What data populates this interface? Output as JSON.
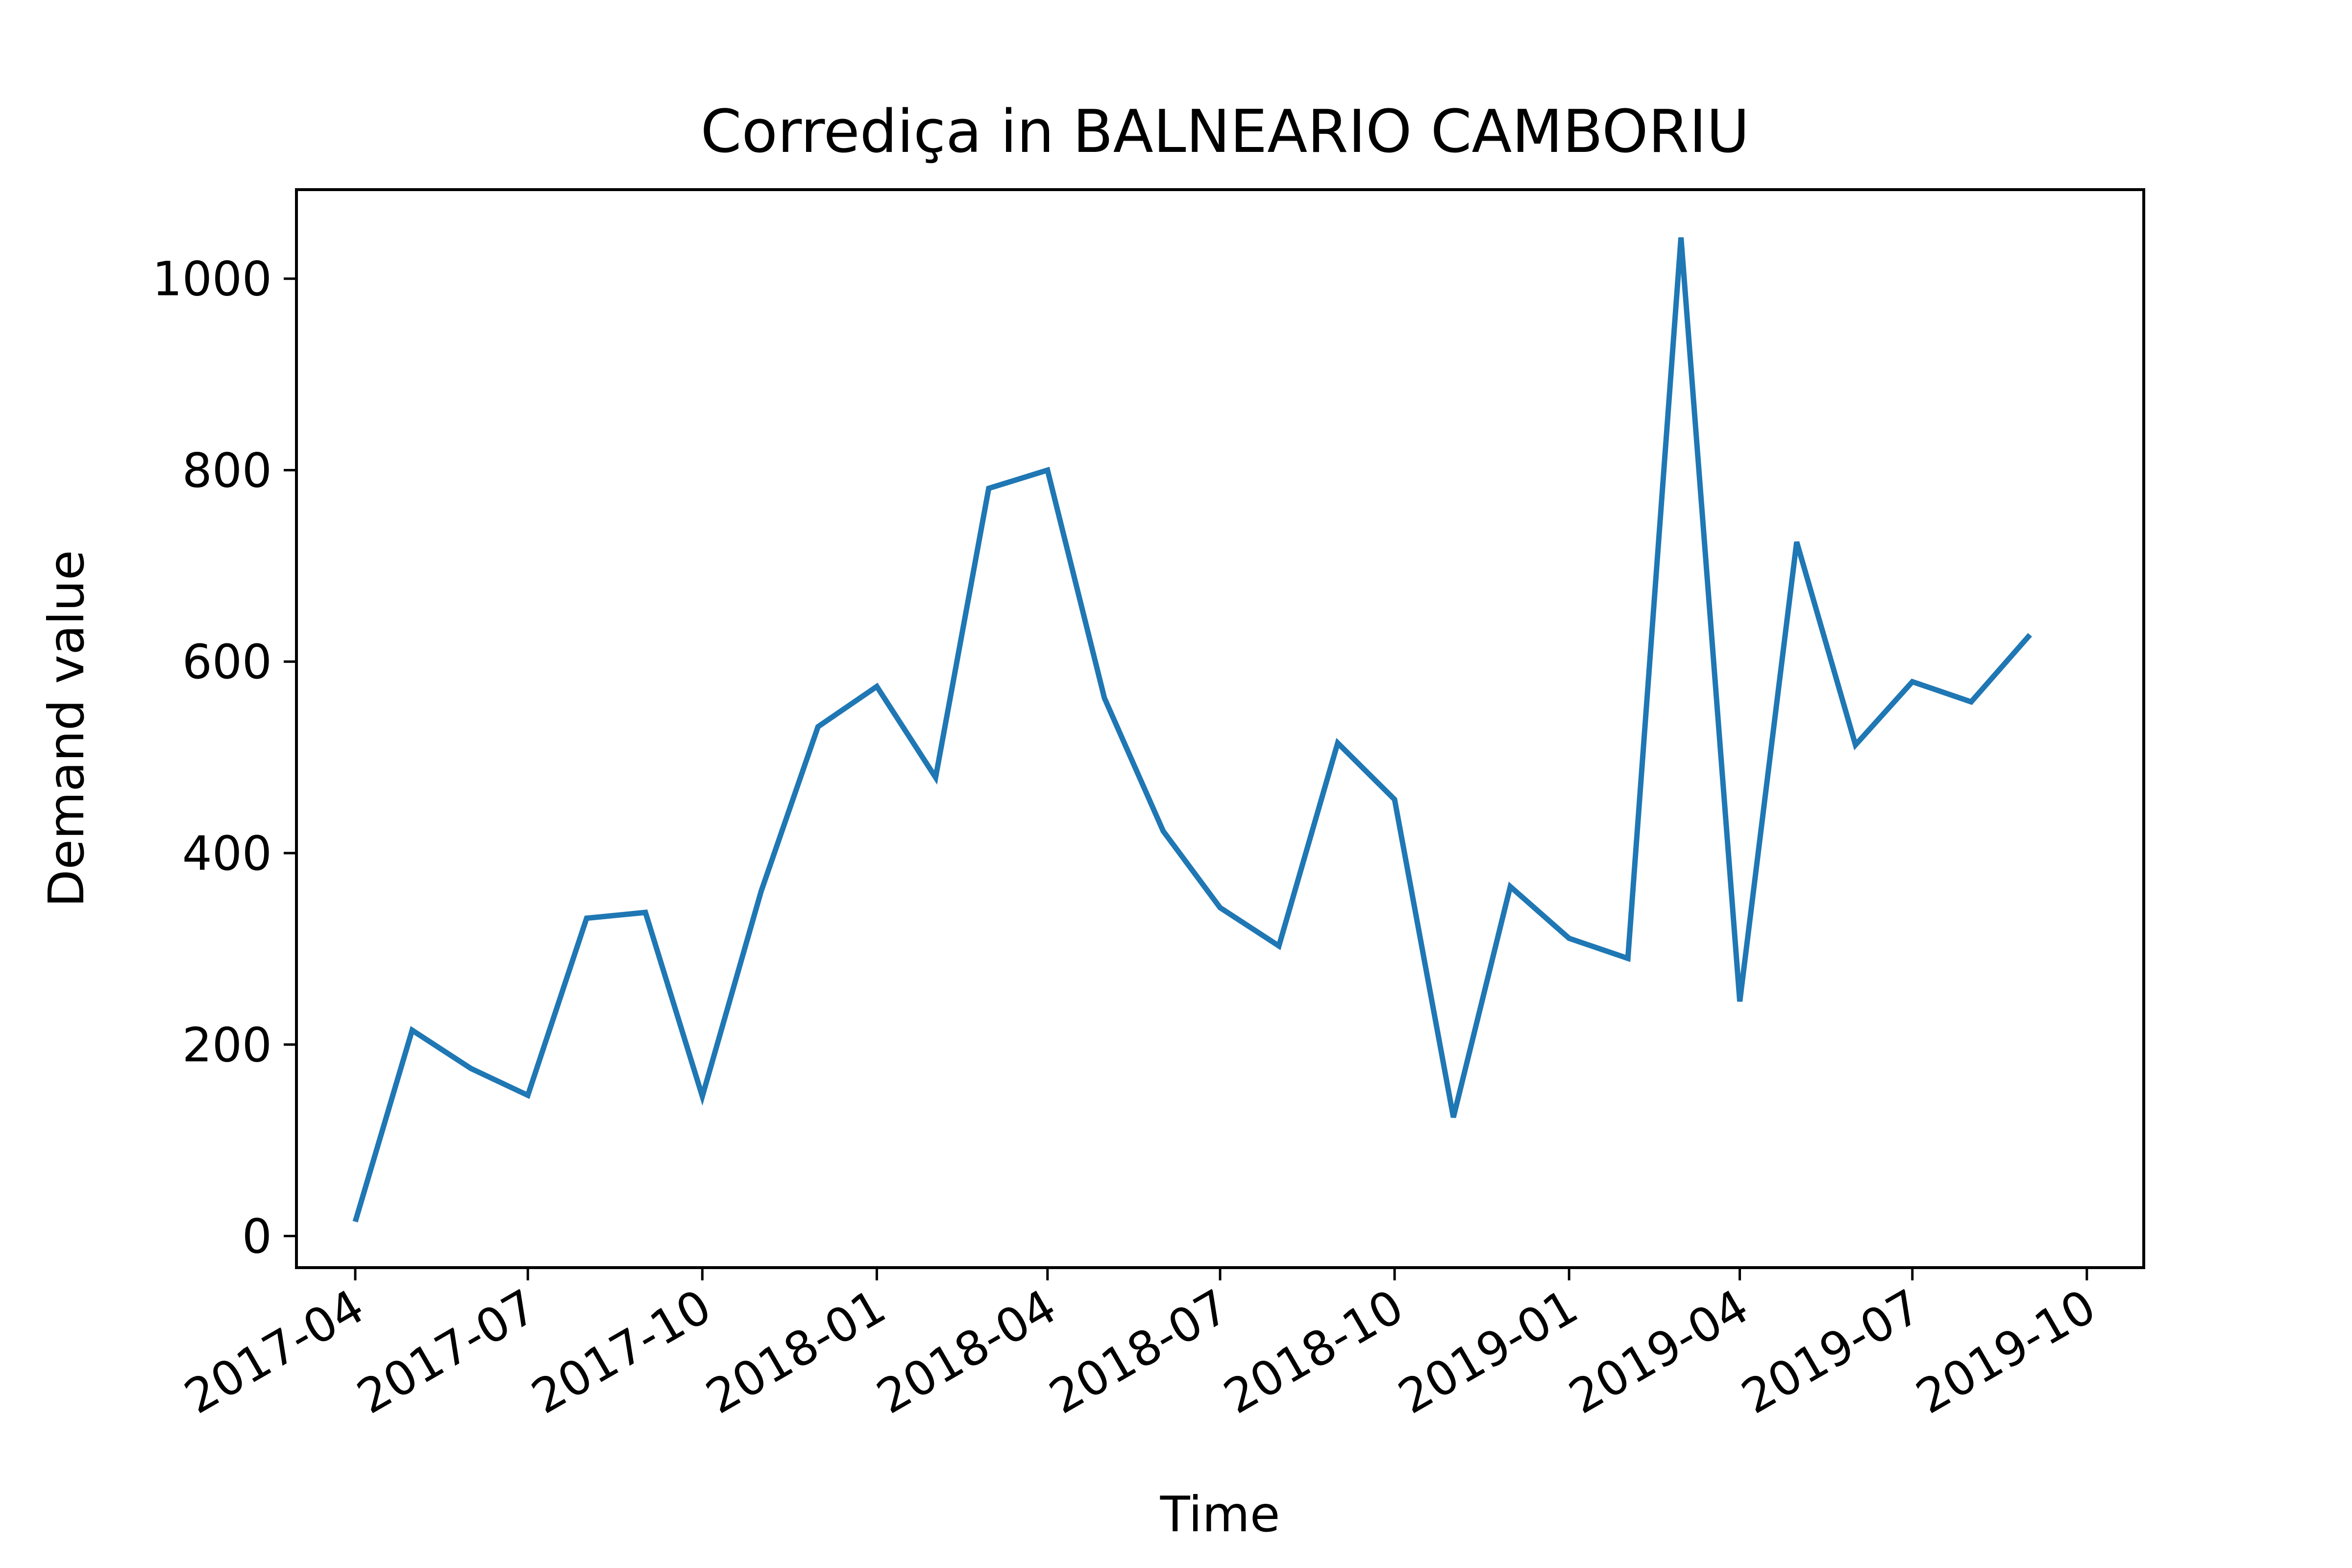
{
  "chart_data": {
    "type": "line",
    "title": "Corrediça in BALNEARIO CAMBORIU",
    "xlabel": "Time",
    "ylabel": "Demand value",
    "x": [
      "2017-04",
      "2017-05",
      "2017-06",
      "2017-07",
      "2017-08",
      "2017-09",
      "2017-10",
      "2017-11",
      "2017-12",
      "2018-01",
      "2018-02",
      "2018-03",
      "2018-04",
      "2018-05",
      "2018-06",
      "2018-07",
      "2018-08",
      "2018-09",
      "2018-10",
      "2018-11",
      "2018-12",
      "2019-01",
      "2019-02",
      "2019-03",
      "2019-04",
      "2019-05",
      "2019-06",
      "2019-07",
      "2019-08",
      "2019-09"
    ],
    "series": [
      {
        "color": "#1f77b4",
        "values": [
          15,
          215,
          175,
          147,
          332,
          338,
          146,
          360,
          532,
          574,
          479,
          781,
          800,
          562,
          423,
          343,
          303,
          515,
          456,
          124,
          365,
          311,
          290,
          1043,
          245,
          725,
          513,
          579,
          558,
          628
        ]
      }
    ],
    "xticks": [
      "2017-04",
      "2017-07",
      "2017-10",
      "2018-01",
      "2018-04",
      "2018-07",
      "2018-10",
      "2019-01",
      "2019-04",
      "2019-07",
      "2019-10"
    ],
    "yticks": [
      0,
      200,
      400,
      600,
      800,
      1000
    ],
    "xlim": [
      "2017-03-01",
      "2019-10-31"
    ],
    "ylim": [
      -33,
      1093
    ],
    "grid": false
  }
}
